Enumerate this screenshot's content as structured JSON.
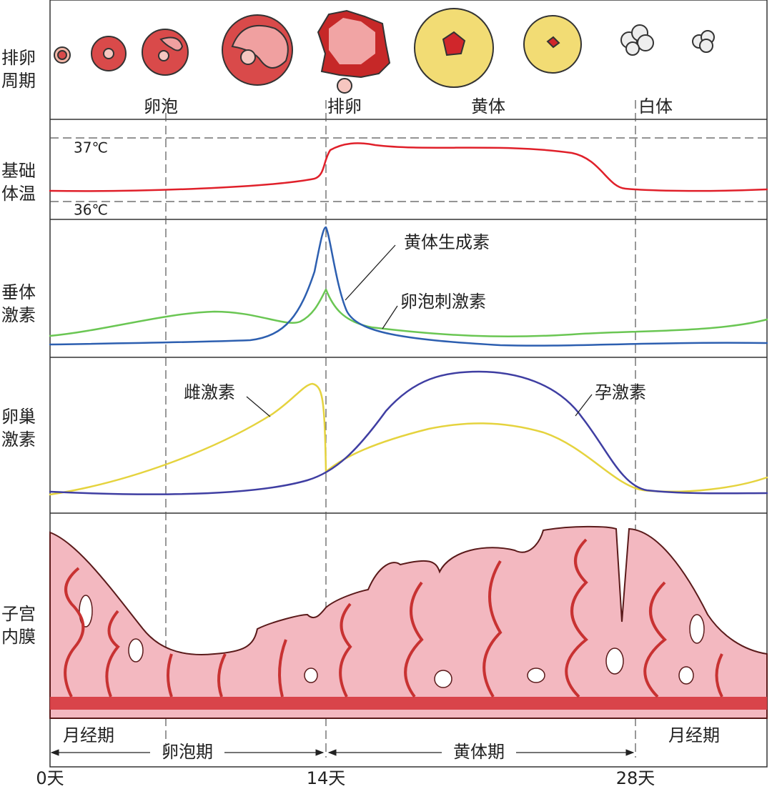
{
  "row_labels": [
    [
      "排卵",
      "周期"
    ],
    [
      "基础",
      "体温"
    ],
    [
      "垂体",
      "激素"
    ],
    [
      "卵巢",
      "激素"
    ],
    [
      "子宫",
      "内膜"
    ]
  ],
  "ovarian_stages": [
    "卵泡",
    "排卵",
    "黄体",
    "白体"
  ],
  "temperature_marks": [
    "37℃",
    "36℃"
  ],
  "pituitary_hormones": [
    "黄体生成素",
    "卵泡刺激素"
  ],
  "ovarian_hormones": [
    "雌激素",
    "孕激素"
  ],
  "phases": [
    "月经期",
    "卵泡期",
    "黄体期",
    "月经期"
  ],
  "days": [
    "0天",
    "14天",
    "28天"
  ]
}
